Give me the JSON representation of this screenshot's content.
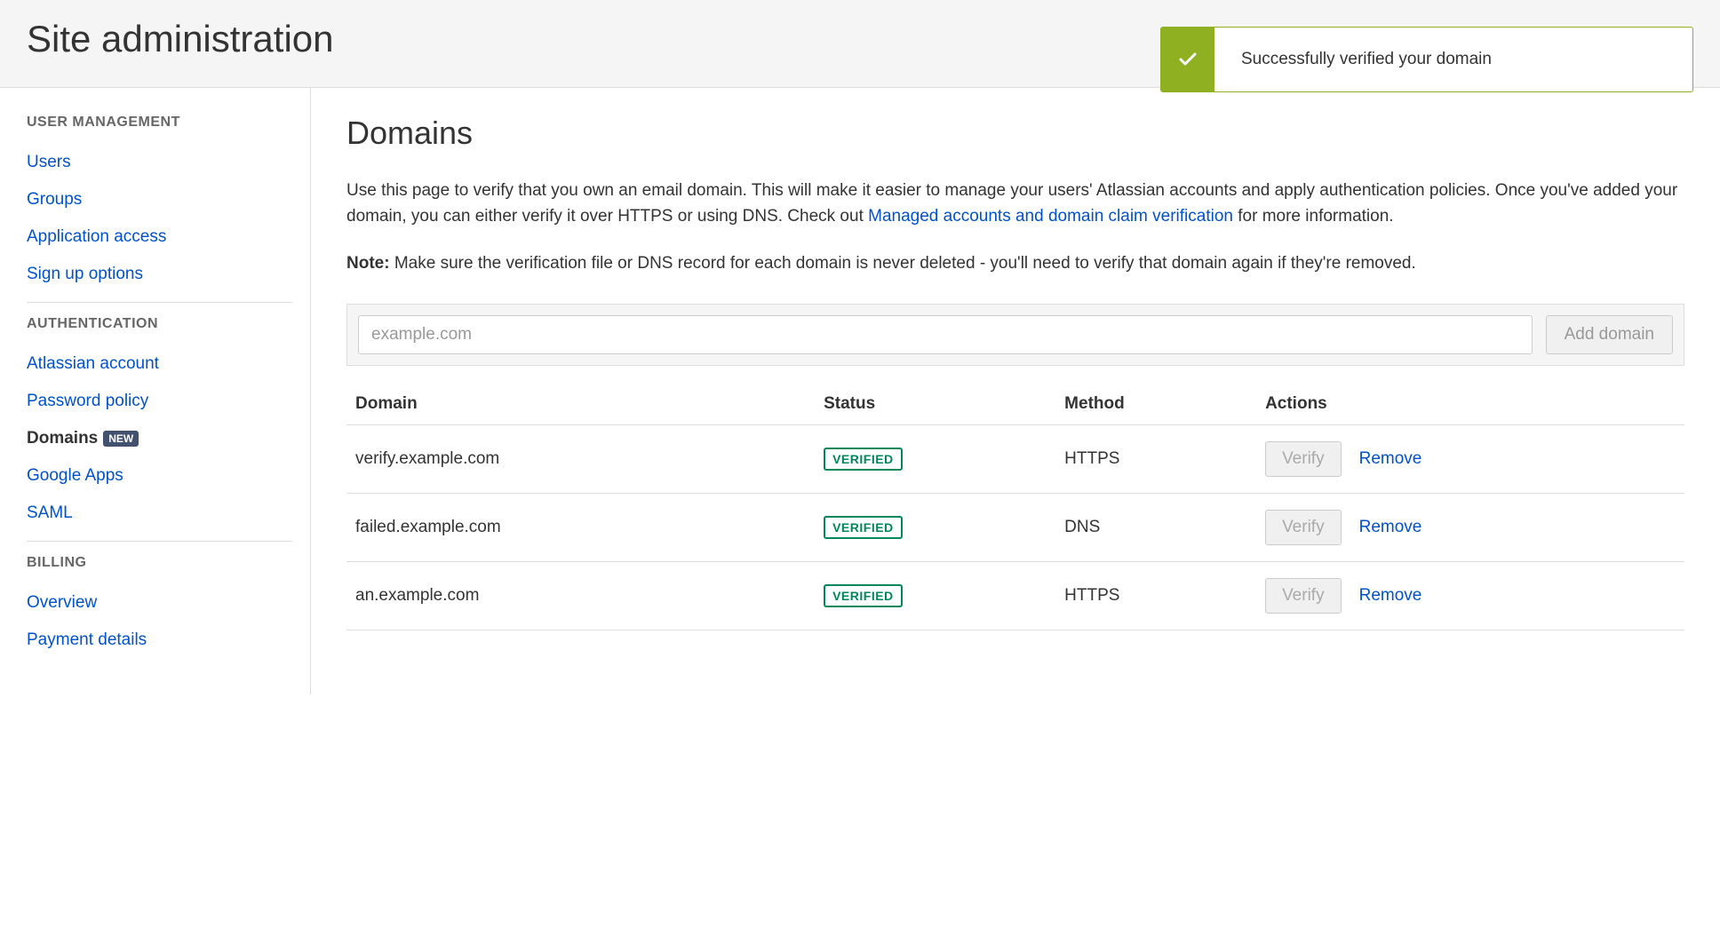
{
  "header": {
    "title": "Site administration"
  },
  "notification": {
    "message": "Successfully verified your domain"
  },
  "sidebar": {
    "sections": [
      {
        "heading": "USER MANAGEMENT",
        "items": [
          {
            "label": "Users",
            "active": false
          },
          {
            "label": "Groups",
            "active": false
          },
          {
            "label": "Application access",
            "active": false
          },
          {
            "label": "Sign up options",
            "active": false
          }
        ]
      },
      {
        "heading": "AUTHENTICATION",
        "items": [
          {
            "label": "Atlassian account",
            "active": false
          },
          {
            "label": "Password policy",
            "active": false
          },
          {
            "label": "Domains",
            "active": true,
            "badge": "NEW"
          },
          {
            "label": "Google Apps",
            "active": false
          },
          {
            "label": "SAML",
            "active": false
          }
        ]
      },
      {
        "heading": "BILLING",
        "items": [
          {
            "label": "Overview",
            "active": false
          },
          {
            "label": "Payment details",
            "active": false
          }
        ]
      }
    ]
  },
  "main": {
    "title": "Domains",
    "description_pre": "Use this page to verify that you own an email domain. This will make it easier to manage your users' Atlassian accounts and apply authentication policies. Once you've added your domain, you can either verify it over HTTPS or using DNS. Check out ",
    "description_link": "Managed accounts and domain claim verification",
    "description_post": " for more information.",
    "note_label": "Note:",
    "note_text": " Make sure the verification file or DNS record for each domain is never deleted - you'll need to verify that domain again if they're removed.",
    "input_placeholder": "example.com",
    "add_button": "Add domain",
    "table": {
      "headers": {
        "domain": "Domain",
        "status": "Status",
        "method": "Method",
        "actions": "Actions"
      },
      "rows": [
        {
          "domain": "verify.example.com",
          "status": "VERIFIED",
          "method": "HTTPS",
          "verify": "Verify",
          "remove": "Remove"
        },
        {
          "domain": "failed.example.com",
          "status": "VERIFIED",
          "method": "DNS",
          "verify": "Verify",
          "remove": "Remove"
        },
        {
          "domain": "an.example.com",
          "status": "VERIFIED",
          "method": "HTTPS",
          "verify": "Verify",
          "remove": "Remove"
        }
      ]
    }
  }
}
